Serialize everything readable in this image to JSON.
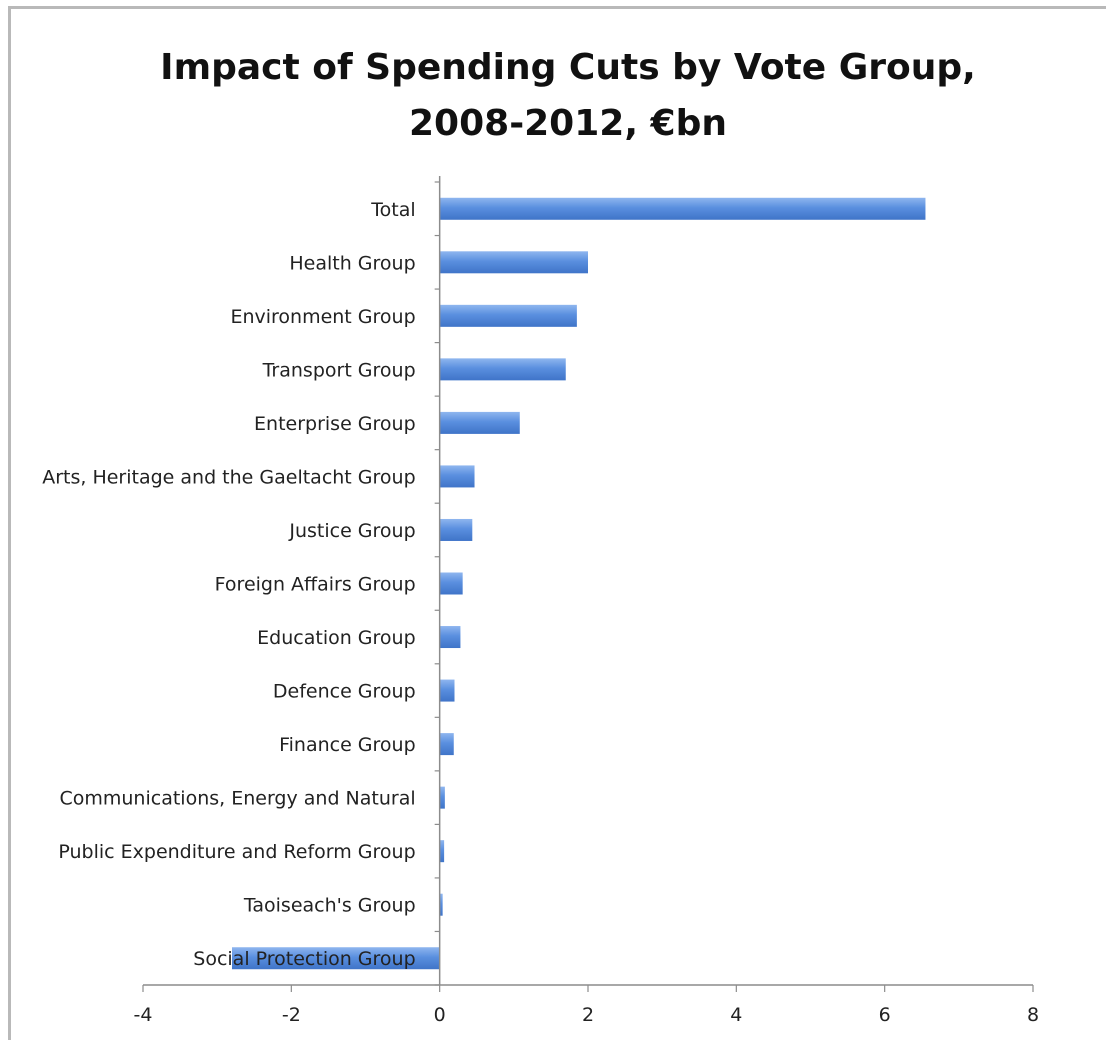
{
  "chart_data": {
    "type": "bar",
    "orientation": "horizontal",
    "title_lines": [
      "Impact of Spending Cuts by Vote Group,",
      "2008-2012, €bn"
    ],
    "categories": [
      "Total",
      "Health Group",
      "Environment Group",
      "Transport Group",
      "Enterprise Group",
      "Arts, Heritage and the Gaeltacht Group",
      "Justice Group",
      "Foreign Affairs Group",
      "Education Group",
      "Defence Group",
      "Finance Group",
      "Communications, Energy and Natural",
      "Public Expenditure and Reform Group",
      "Taoiseach's Group",
      "Social Protection Group"
    ],
    "values": [
      6.55,
      2.0,
      1.85,
      1.7,
      1.08,
      0.47,
      0.44,
      0.31,
      0.28,
      0.2,
      0.19,
      0.07,
      0.06,
      0.04,
      -2.8
    ],
    "xlim": [
      -4,
      8
    ],
    "x_ticks": [
      "-4",
      "-2",
      "0",
      "2",
      "4",
      "6",
      "8"
    ],
    "grid": false,
    "bar_color": "#4f86db"
  }
}
